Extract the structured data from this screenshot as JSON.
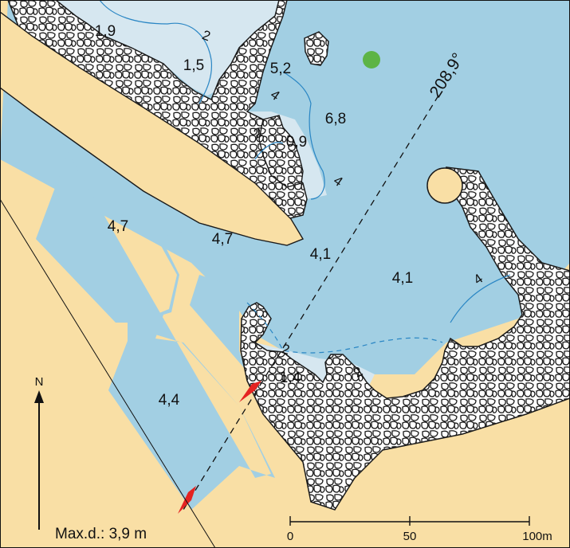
{
  "colors": {
    "land": "#f9dfa5",
    "deep_water": "#a2cfe3",
    "shallow_water": "#d6e7f0",
    "rock_fill": "#ffffff",
    "rock_outline": "#1a1a1a",
    "contour": "#2a86c4",
    "beacon_green": "#5db446",
    "leading_marker": "#e52321"
  },
  "map": {
    "bearing_label": "208,9°",
    "max_depth_label": "Max.d.: 3,9 m",
    "north_label": "N",
    "scale": {
      "labels": [
        "0",
        "50",
        "100m"
      ]
    },
    "depths": [
      "1,9",
      "1,5",
      "5,2",
      "6,8",
      "0,9",
      "4,7",
      "4,7",
      "4,1",
      "4,1",
      "1,4",
      "4,4"
    ],
    "contour_labels": [
      "2",
      "4",
      "2",
      "4",
      "4",
      "2",
      "2"
    ],
    "icons": [
      "green-buoy-icon",
      "round-beacon-icon",
      "leading-marker-icon",
      "leading-marker-icon",
      "north-arrow-icon"
    ]
  }
}
